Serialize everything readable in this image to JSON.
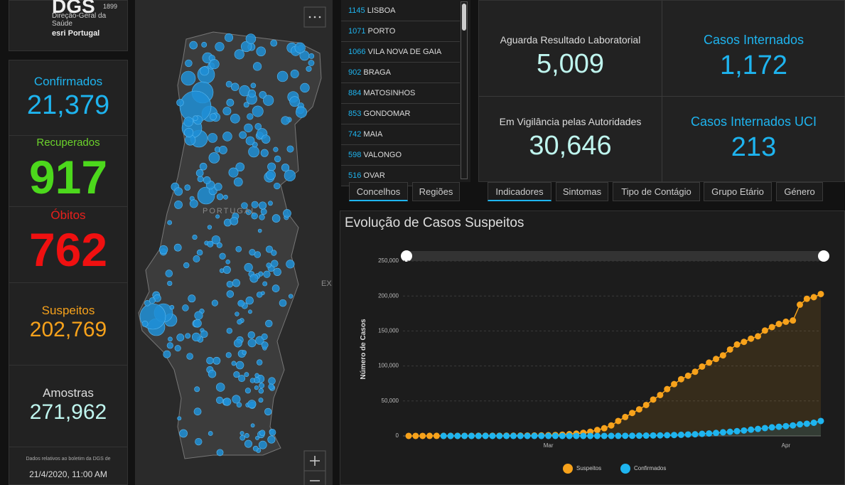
{
  "logo": {
    "title": "DGS",
    "year": "1899",
    "subtitle": "Direção-Geral da Saúde",
    "partner": "esri Portugal"
  },
  "stats": [
    {
      "label": "Confirmados",
      "value": "21,379"
    },
    {
      "label": "Recuperados",
      "value": "917"
    },
    {
      "label": "Óbitos",
      "value": "762"
    },
    {
      "label": "Suspeitos",
      "value": "202,769"
    },
    {
      "label": "Amostras",
      "value": "271,962"
    }
  ],
  "footnote": {
    "text": "Dados relativos ao boletim da DGS de",
    "date": "21/4/2020, 11:00 AM"
  },
  "map": {
    "label": "PORTUGAL",
    "edge_label": "EX"
  },
  "list": {
    "rows": [
      {
        "count": "1145",
        "name": "LISBOA"
      },
      {
        "count": "1071",
        "name": "PORTO"
      },
      {
        "count": "1066",
        "name": "VILA NOVA DE GAIA"
      },
      {
        "count": "902",
        "name": "BRAGA"
      },
      {
        "count": "884",
        "name": "MATOSINHOS"
      },
      {
        "count": "853",
        "name": "GONDOMAR"
      },
      {
        "count": "742",
        "name": "MAIA"
      },
      {
        "count": "598",
        "name": "VALONGO"
      },
      {
        "count": "516",
        "name": "OVAR"
      }
    ]
  },
  "list_tabs": [
    "Concelhos",
    "Regiões"
  ],
  "indicators": [
    {
      "label": "Aguarda Resultado Laboratorial",
      "value": "5,009"
    },
    {
      "label": "Casos Internados",
      "value": "1,172"
    },
    {
      "label": "Em Vigilância pelas Autoridades",
      "value": "30,646"
    },
    {
      "label": "Casos Internados UCI",
      "value": "213"
    }
  ],
  "indicator_tabs": [
    "Indicadores",
    "Sintomas",
    "Tipo de Contágio",
    "Grupo Etário",
    "Género"
  ],
  "chart_data": {
    "type": "line",
    "title": "Evolução de Casos Suspeitos",
    "y_label": "Número de Casos",
    "categories": [
      null,
      null,
      null,
      null,
      null,
      null,
      null,
      null,
      null,
      null,
      null,
      null,
      null,
      null,
      null,
      null,
      null,
      null,
      null,
      null,
      "Mar",
      null,
      null,
      null,
      null,
      null,
      null,
      null,
      null,
      null,
      null,
      null,
      null,
      null,
      null,
      null,
      null,
      null,
      null,
      null,
      null,
      null,
      null,
      null,
      null,
      null,
      null,
      null,
      null,
      null,
      null,
      null,
      null,
      null,
      "Apr",
      null,
      null,
      null,
      null,
      null
    ],
    "series": [
      {
        "name": "Suspeitos",
        "color": "#f7a21b",
        "values": [
          25,
          51,
          59,
          70,
          85,
          101,
          117,
          131,
          156,
          173,
          200,
          230,
          263,
          300,
          340,
          380,
          450,
          520,
          640,
          800,
          1000,
          1300,
          1800,
          2500,
          3300,
          4500,
          6000,
          8500,
          11000,
          15000,
          21355,
          27000,
          32793,
          38000,
          44258,
          52000,
          58458,
          66895,
          74000,
          81087,
          86000,
          91700,
          99100,
          104800,
          110000,
          115100,
          123500,
          130700,
          134400,
          139000,
          142400,
          150600,
          155500,
          160000,
          163200,
          165000,
          187600,
          196000,
          198300,
          202769
        ]
      },
      {
        "name": "Confirmados",
        "color": "#1eb4ef",
        "values": [
          null,
          null,
          null,
          null,
          null,
          0,
          0,
          0,
          0,
          0,
          0,
          0,
          0,
          0,
          0,
          0,
          0,
          0,
          0,
          0,
          0,
          0,
          2,
          4,
          6,
          9,
          13,
          30,
          59,
          78,
          112,
          169,
          245,
          331,
          448,
          642,
          785,
          1020,
          1280,
          1600,
          2060,
          2362,
          2995,
          3544,
          4268,
          5170,
          5962,
          6800,
          7800,
          9000,
          10000,
          11200,
          12300,
          13141,
          14000,
          15000,
          16585,
          17448,
          18841,
          21379
        ]
      }
    ],
    "ylim": [
      0,
      250000
    ],
    "yticks": [
      0,
      {
        "value": 50000,
        "label": "50,000"
      },
      {
        "value": 100000,
        "label": "100,000"
      },
      {
        "value": 150000,
        "label": "150,000"
      },
      {
        "value": 200000,
        "label": "200,000"
      },
      {
        "value": 250000,
        "label": "250,000"
      }
    ],
    "grid": true,
    "legend": "bottom"
  }
}
